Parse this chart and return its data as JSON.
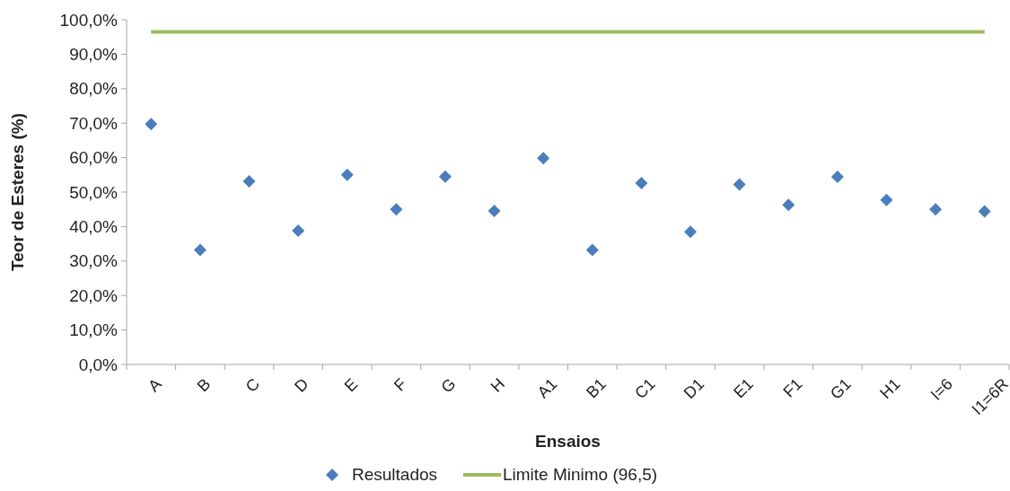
{
  "chart_data": {
    "type": "scatter",
    "xlabel": "Ensaios",
    "ylabel": "Teor de Esteres (%)",
    "categories": [
      "A",
      "B",
      "C",
      "D",
      "E",
      "F",
      "G",
      "H",
      "A1",
      "B1",
      "C1",
      "D1",
      "E1",
      "F1",
      "G1",
      "H1",
      "I=6",
      "I1=6R"
    ],
    "series": [
      {
        "name": "Resultados",
        "color": "#4a7ebb",
        "marker": "diamond",
        "values": [
          69.7,
          33.2,
          53.1,
          38.8,
          55.0,
          45.0,
          54.5,
          44.5,
          59.8,
          33.2,
          52.6,
          38.5,
          52.2,
          46.3,
          54.4,
          47.7,
          45.0,
          44.4
        ]
      },
      {
        "name": "Limite Minimo (96,5)",
        "type": "line",
        "color": "#9bbb59",
        "marker": "none",
        "values": [
          96.5,
          96.5,
          96.5,
          96.5,
          96.5,
          96.5,
          96.5,
          96.5,
          96.5,
          96.5,
          96.5,
          96.5,
          96.5,
          96.5,
          96.5,
          96.5,
          96.5,
          96.5
        ]
      }
    ],
    "ylim": [
      0,
      100
    ],
    "yticks": [
      {
        "value": 0,
        "label": "0,0%"
      },
      {
        "value": 10,
        "label": "10,0%"
      },
      {
        "value": 20,
        "label": "20,0%"
      },
      {
        "value": 30,
        "label": "30,0%"
      },
      {
        "value": 40,
        "label": "40,0%"
      },
      {
        "value": 50,
        "label": "50,0%"
      },
      {
        "value": 60,
        "label": "60,0%"
      },
      {
        "value": 70,
        "label": "70,0%"
      },
      {
        "value": 80,
        "label": "80,0%"
      },
      {
        "value": 90,
        "label": "90,0%"
      },
      {
        "value": 100,
        "label": "100,0%"
      }
    ],
    "grid": false,
    "legend": "bottom"
  }
}
